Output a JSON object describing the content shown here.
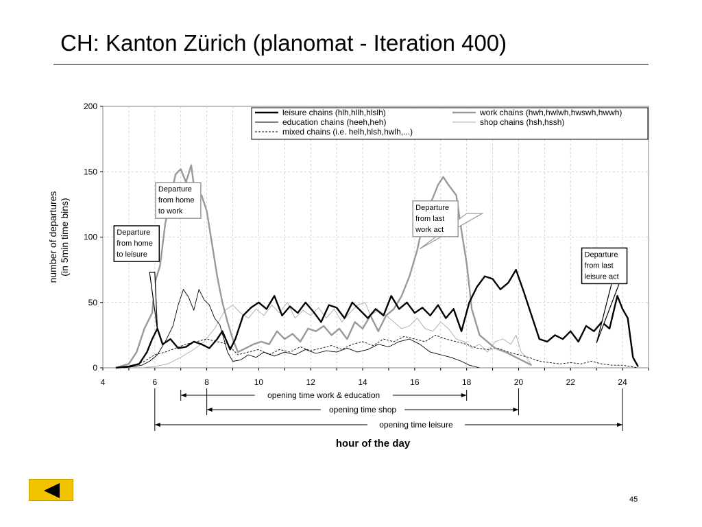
{
  "slide": {
    "title": "CH: Kanton Zürich (planomat - Iteration 400)",
    "page_number": "45",
    "back_button_color": "#f2c400",
    "back_icon": "triangle-left-icon"
  },
  "chart_data": {
    "type": "line",
    "xlabel": "hour of the day",
    "ylabel": [
      "number of departures",
      "(in 5min time bins)"
    ],
    "xlim": [
      4,
      25
    ],
    "ylim": [
      0,
      200
    ],
    "xticks": [
      4,
      6,
      8,
      10,
      12,
      14,
      16,
      18,
      20,
      22,
      24
    ],
    "yticks": [
      0,
      50,
      100,
      150,
      200
    ],
    "grid": true,
    "legend_position": "top-right",
    "series": [
      {
        "name": "leisure chains (hlh,hllh,hlslh)",
        "color": "#000000",
        "width": 2.4,
        "dash": "",
        "points": [
          [
            4.5,
            0
          ],
          [
            5.0,
            1
          ],
          [
            5.4,
            3
          ],
          [
            5.7,
            12
          ],
          [
            5.9,
            22
          ],
          [
            6.1,
            30
          ],
          [
            6.3,
            18
          ],
          [
            6.6,
            22
          ],
          [
            6.9,
            15
          ],
          [
            7.2,
            16
          ],
          [
            7.5,
            20
          ],
          [
            7.8,
            18
          ],
          [
            8.1,
            15
          ],
          [
            8.4,
            22
          ],
          [
            8.6,
            28
          ],
          [
            8.9,
            14
          ],
          [
            9.1,
            22
          ],
          [
            9.4,
            40
          ],
          [
            9.7,
            46
          ],
          [
            10.0,
            50
          ],
          [
            10.3,
            45
          ],
          [
            10.6,
            55
          ],
          [
            10.9,
            40
          ],
          [
            11.2,
            47
          ],
          [
            11.5,
            42
          ],
          [
            11.8,
            50
          ],
          [
            12.1,
            43
          ],
          [
            12.4,
            35
          ],
          [
            12.7,
            48
          ],
          [
            13.0,
            46
          ],
          [
            13.3,
            38
          ],
          [
            13.6,
            50
          ],
          [
            13.9,
            44
          ],
          [
            14.2,
            38
          ],
          [
            14.5,
            45
          ],
          [
            14.8,
            40
          ],
          [
            15.1,
            55
          ],
          [
            15.4,
            45
          ],
          [
            15.7,
            50
          ],
          [
            16.0,
            42
          ],
          [
            16.3,
            46
          ],
          [
            16.6,
            40
          ],
          [
            16.9,
            48
          ],
          [
            17.2,
            38
          ],
          [
            17.5,
            45
          ],
          [
            17.8,
            28
          ],
          [
            18.1,
            50
          ],
          [
            18.4,
            62
          ],
          [
            18.7,
            70
          ],
          [
            19.0,
            68
          ],
          [
            19.3,
            60
          ],
          [
            19.6,
            65
          ],
          [
            19.9,
            75
          ],
          [
            20.2,
            58
          ],
          [
            20.5,
            40
          ],
          [
            20.8,
            22
          ],
          [
            21.1,
            20
          ],
          [
            21.4,
            25
          ],
          [
            21.7,
            22
          ],
          [
            22.0,
            28
          ],
          [
            22.3,
            20
          ],
          [
            22.6,
            32
          ],
          [
            22.9,
            28
          ],
          [
            23.2,
            35
          ],
          [
            23.5,
            30
          ],
          [
            23.8,
            55
          ],
          [
            24.0,
            45
          ],
          [
            24.2,
            38
          ],
          [
            24.4,
            8
          ],
          [
            24.6,
            1
          ]
        ]
      },
      {
        "name": "work chains (hwh,hwlwh,hwswh,hwwh)",
        "color": "#999999",
        "width": 2.4,
        "dash": "",
        "points": [
          [
            4.5,
            0
          ],
          [
            5.0,
            3
          ],
          [
            5.3,
            12
          ],
          [
            5.6,
            30
          ],
          [
            5.9,
            42
          ],
          [
            6.0,
            65
          ],
          [
            6.2,
            78
          ],
          [
            6.4,
            110
          ],
          [
            6.6,
            130
          ],
          [
            6.8,
            148
          ],
          [
            7.0,
            152
          ],
          [
            7.2,
            142
          ],
          [
            7.4,
            155
          ],
          [
            7.6,
            125
          ],
          [
            7.8,
            132
          ],
          [
            8.0,
            120
          ],
          [
            8.2,
            95
          ],
          [
            8.4,
            70
          ],
          [
            8.6,
            50
          ],
          [
            8.8,
            35
          ],
          [
            9.0,
            22
          ],
          [
            9.2,
            12
          ],
          [
            9.5,
            15
          ],
          [
            9.8,
            18
          ],
          [
            10.1,
            20
          ],
          [
            10.4,
            18
          ],
          [
            10.7,
            28
          ],
          [
            11.0,
            22
          ],
          [
            11.3,
            26
          ],
          [
            11.6,
            20
          ],
          [
            11.9,
            30
          ],
          [
            12.2,
            28
          ],
          [
            12.5,
            32
          ],
          [
            12.8,
            25
          ],
          [
            13.1,
            30
          ],
          [
            13.4,
            22
          ],
          [
            13.7,
            35
          ],
          [
            14.0,
            30
          ],
          [
            14.3,
            40
          ],
          [
            14.6,
            28
          ],
          [
            14.9,
            40
          ],
          [
            15.2,
            45
          ],
          [
            15.5,
            55
          ],
          [
            15.8,
            70
          ],
          [
            16.1,
            90
          ],
          [
            16.4,
            118
          ],
          [
            16.7,
            130
          ],
          [
            16.9,
            140
          ],
          [
            17.1,
            146
          ],
          [
            17.3,
            140
          ],
          [
            17.6,
            132
          ],
          [
            17.8,
            105
          ],
          [
            18.0,
            80
          ],
          [
            18.2,
            45
          ],
          [
            18.5,
            25
          ],
          [
            18.8,
            20
          ],
          [
            19.1,
            15
          ],
          [
            19.5,
            12
          ],
          [
            19.9,
            8
          ],
          [
            20.2,
            5
          ],
          [
            20.5,
            2
          ]
        ]
      },
      {
        "name": "education chains (heeh,heh)",
        "color": "#000000",
        "width": 0.9,
        "dash": "",
        "points": [
          [
            4.8,
            0
          ],
          [
            5.2,
            1
          ],
          [
            5.5,
            2
          ],
          [
            5.8,
            5
          ],
          [
            6.1,
            10
          ],
          [
            6.4,
            20
          ],
          [
            6.7,
            32
          ],
          [
            6.9,
            48
          ],
          [
            7.1,
            60
          ],
          [
            7.3,
            54
          ],
          [
            7.5,
            44
          ],
          [
            7.7,
            60
          ],
          [
            7.9,
            52
          ],
          [
            8.1,
            48
          ],
          [
            8.3,
            38
          ],
          [
            8.5,
            33
          ],
          [
            8.8,
            12
          ],
          [
            9.0,
            5
          ],
          [
            9.3,
            6
          ],
          [
            9.6,
            10
          ],
          [
            9.9,
            8
          ],
          [
            10.2,
            12
          ],
          [
            10.6,
            9
          ],
          [
            11.0,
            12
          ],
          [
            11.4,
            10
          ],
          [
            11.8,
            14
          ],
          [
            12.2,
            11
          ],
          [
            12.6,
            13
          ],
          [
            13.0,
            12
          ],
          [
            13.4,
            15
          ],
          [
            13.8,
            12
          ],
          [
            14.2,
            14
          ],
          [
            14.6,
            18
          ],
          [
            15.0,
            16
          ],
          [
            15.4,
            20
          ],
          [
            15.8,
            22
          ],
          [
            16.2,
            18
          ],
          [
            16.6,
            12
          ],
          [
            17.0,
            10
          ],
          [
            17.4,
            8
          ],
          [
            17.8,
            5
          ],
          [
            18.1,
            2
          ],
          [
            18.5,
            0
          ]
        ]
      },
      {
        "name": "shop chains (hsh,hssh)",
        "color": "#aaaaaa",
        "width": 0.9,
        "dash": "",
        "points": [
          [
            5.5,
            0
          ],
          [
            6.0,
            1
          ],
          [
            6.5,
            3
          ],
          [
            7.0,
            8
          ],
          [
            7.5,
            14
          ],
          [
            7.9,
            20
          ],
          [
            8.3,
            30
          ],
          [
            8.7,
            44
          ],
          [
            9.0,
            48
          ],
          [
            9.3,
            42
          ],
          [
            9.6,
            38
          ],
          [
            9.9,
            45
          ],
          [
            10.2,
            40
          ],
          [
            10.5,
            48
          ],
          [
            10.8,
            42
          ],
          [
            11.1,
            50
          ],
          [
            11.4,
            38
          ],
          [
            11.7,
            44
          ],
          [
            12.0,
            40
          ],
          [
            12.3,
            46
          ],
          [
            12.6,
            38
          ],
          [
            12.9,
            45
          ],
          [
            13.2,
            35
          ],
          [
            13.5,
            42
          ],
          [
            13.8,
            48
          ],
          [
            14.1,
            50
          ],
          [
            14.3,
            40
          ],
          [
            14.6,
            44
          ],
          [
            14.9,
            40
          ],
          [
            15.2,
            35
          ],
          [
            15.5,
            30
          ],
          [
            15.8,
            32
          ],
          [
            16.1,
            38
          ],
          [
            16.4,
            30
          ],
          [
            16.7,
            28
          ],
          [
            17.0,
            35
          ],
          [
            17.3,
            30
          ],
          [
            17.6,
            22
          ],
          [
            17.9,
            20
          ],
          [
            18.2,
            15
          ],
          [
            18.5,
            18
          ],
          [
            18.8,
            12
          ],
          [
            19.1,
            20
          ],
          [
            19.4,
            22
          ],
          [
            19.7,
            18
          ],
          [
            19.9,
            25
          ],
          [
            20.1,
            12
          ],
          [
            20.3,
            8
          ],
          [
            20.5,
            2
          ]
        ]
      },
      {
        "name": "mixed chains (i.e. helh,hlsh,hwlh,...)",
        "color": "#000000",
        "width": 0.9,
        "dash": "3,2",
        "points": [
          [
            4.8,
            0
          ],
          [
            5.2,
            2
          ],
          [
            5.6,
            5
          ],
          [
            6.0,
            10
          ],
          [
            6.4,
            12
          ],
          [
            6.8,
            15
          ],
          [
            7.2,
            18
          ],
          [
            7.6,
            20
          ],
          [
            8.0,
            22
          ],
          [
            8.4,
            20
          ],
          [
            8.8,
            18
          ],
          [
            9.2,
            10
          ],
          [
            9.6,
            12
          ],
          [
            10.0,
            14
          ],
          [
            10.4,
            10
          ],
          [
            10.8,
            14
          ],
          [
            11.2,
            12
          ],
          [
            11.6,
            16
          ],
          [
            12.0,
            13
          ],
          [
            12.4,
            15
          ],
          [
            12.8,
            17
          ],
          [
            13.2,
            14
          ],
          [
            13.6,
            18
          ],
          [
            14.0,
            20
          ],
          [
            14.4,
            17
          ],
          [
            14.8,
            22
          ],
          [
            15.2,
            20
          ],
          [
            15.6,
            24
          ],
          [
            16.0,
            22
          ],
          [
            16.4,
            20
          ],
          [
            16.8,
            25
          ],
          [
            17.2,
            22
          ],
          [
            17.6,
            20
          ],
          [
            18.0,
            18
          ],
          [
            18.4,
            15
          ],
          [
            18.8,
            14
          ],
          [
            19.2,
            15
          ],
          [
            19.6,
            12
          ],
          [
            20.0,
            10
          ],
          [
            20.4,
            8
          ],
          [
            20.8,
            5
          ],
          [
            21.2,
            4
          ],
          [
            21.6,
            3
          ],
          [
            22.0,
            4
          ],
          [
            22.4,
            3
          ],
          [
            22.8,
            5
          ],
          [
            23.2,
            3
          ],
          [
            23.6,
            2
          ],
          [
            24.0,
            2
          ],
          [
            24.3,
            1
          ],
          [
            24.6,
            0
          ]
        ]
      }
    ],
    "annotations": [
      {
        "lines": [
          "Departure",
          "from home",
          "to work"
        ],
        "border": "#999999",
        "anchor": [
          6.9,
          128
        ],
        "pointer": [
          [
            7.5,
            128
          ],
          [
            6.4,
            136
          ],
          [
            6.4,
            131
          ]
        ]
      },
      {
        "lines": [
          "Departure",
          "from home",
          "to leisure"
        ],
        "border": "#000000",
        "anchor": [
          5.3,
          95
        ],
        "pointer": [
          [
            6.1,
            29
          ],
          [
            5.8,
            73
          ],
          [
            6.0,
            73
          ]
        ]
      },
      {
        "lines": [
          "Departure",
          "from last",
          "work act"
        ],
        "border": "#999999",
        "anchor": [
          16.8,
          114
        ],
        "pointer": [
          [
            16.2,
            91
          ],
          [
            18.0,
            118
          ],
          [
            18.6,
            118
          ]
        ]
      },
      {
        "lines": [
          "Departure",
          "from last",
          "leisure act"
        ],
        "border": "#000000",
        "anchor": [
          23.3,
          78
        ],
        "pointer": [
          [
            23.0,
            19
          ],
          [
            23.6,
            66
          ],
          [
            23.9,
            66
          ]
        ]
      }
    ],
    "ranges": [
      {
        "label": "opening time work & education",
        "from": 7,
        "to": 18
      },
      {
        "label": "opening time shop",
        "from": 8,
        "to": 20
      },
      {
        "label": "opening time leisure",
        "from": 6,
        "to": 24
      }
    ]
  }
}
